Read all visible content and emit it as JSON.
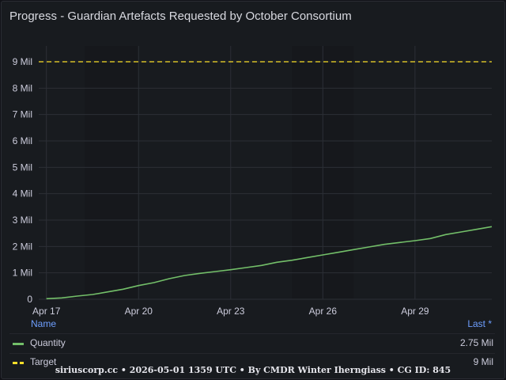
{
  "panel": {
    "title": "Progress - Guardian Artefacts Requested by October Consortium",
    "footer": "siriuscorp.cc • 2026-05-01 1359 UTC • By CMDR Winter Iherngiass • CG ID: 845"
  },
  "colors": {
    "quantity": "#73bf69",
    "target": "#fade2a",
    "legend_header": "#6e9fff",
    "grid": "#2c2f36",
    "night_band": "#16181c"
  },
  "legend": {
    "name_header": "Name",
    "last_header": "Last *",
    "items": [
      {
        "name": "Quantity",
        "last": "2.75 Mil"
      },
      {
        "name": "Target",
        "last": "9 Mil"
      }
    ]
  },
  "chart_data": {
    "type": "line",
    "x_unit": "date",
    "x_range": [
      "2026-04-16T18:00",
      "2026-05-01T12:00"
    ],
    "x_ticks": [
      "Apr 17",
      "Apr 20",
      "Apr 23",
      "Apr 26",
      "Apr 29"
    ],
    "x_tick_dates": [
      "2026-04-17",
      "2026-04-20",
      "2026-04-23",
      "2026-04-26",
      "2026-04-29"
    ],
    "y_ticks": [
      "0",
      "1 Mil",
      "2 Mil",
      "3 Mil",
      "4 Mil",
      "5 Mil",
      "6 Mil",
      "7 Mil",
      "8 Mil",
      "9 Mil"
    ],
    "ylim": [
      0,
      9.6
    ],
    "y_unit": "Mil",
    "grid": true,
    "legend_placement": "bottom",
    "shaded_periods": [
      [
        "2026-04-18T06:00",
        "2026-04-20T00:00"
      ],
      [
        "2026-04-25T00:00",
        "2026-04-27T00:00"
      ]
    ],
    "series": [
      {
        "name": "Quantity",
        "style": "solid",
        "x": [
          "2026-04-17T00:00",
          "2026-04-17T12:00",
          "2026-04-18T00:00",
          "2026-04-18T12:00",
          "2026-04-19T00:00",
          "2026-04-19T12:00",
          "2026-04-20T00:00",
          "2026-04-20T12:00",
          "2026-04-21T00:00",
          "2026-04-21T12:00",
          "2026-04-22T00:00",
          "2026-04-22T12:00",
          "2026-04-23T00:00",
          "2026-04-23T12:00",
          "2026-04-24T00:00",
          "2026-04-24T12:00",
          "2026-04-25T00:00",
          "2026-04-25T12:00",
          "2026-04-26T00:00",
          "2026-04-26T12:00",
          "2026-04-27T00:00",
          "2026-04-27T12:00",
          "2026-04-28T00:00",
          "2026-04-28T12:00",
          "2026-04-29T00:00",
          "2026-04-29T12:00",
          "2026-04-30T00:00",
          "2026-04-30T12:00",
          "2026-05-01T00:00",
          "2026-05-01T12:00"
        ],
        "values": [
          0.02,
          0.05,
          0.12,
          0.18,
          0.28,
          0.38,
          0.52,
          0.63,
          0.78,
          0.9,
          0.98,
          1.05,
          1.12,
          1.2,
          1.28,
          1.4,
          1.48,
          1.58,
          1.68,
          1.78,
          1.88,
          1.98,
          2.08,
          2.15,
          2.22,
          2.3,
          2.45,
          2.55,
          2.65,
          2.75
        ]
      },
      {
        "name": "Target",
        "style": "dashed",
        "x": [
          "2026-04-16T18:00",
          "2026-05-01T12:00"
        ],
        "values": [
          9,
          9
        ]
      }
    ]
  }
}
